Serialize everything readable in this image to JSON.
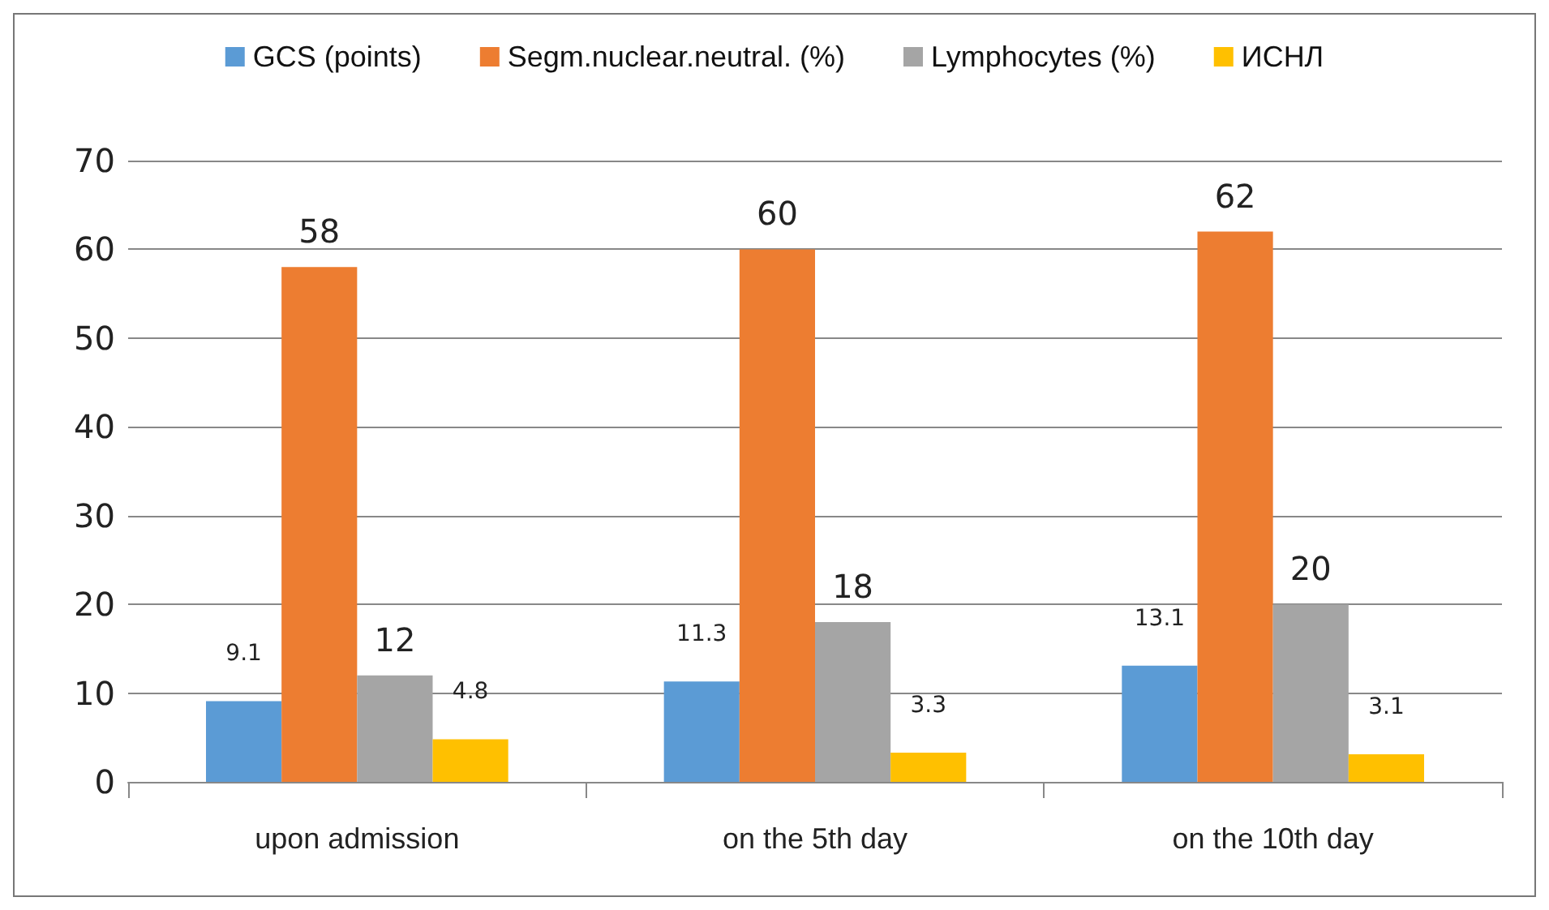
{
  "chart_data": {
    "type": "bar",
    "categories": [
      "upon admission",
      "on the 5th day",
      "on the 10th day"
    ],
    "series": [
      {
        "name": "GCS (points)",
        "color": "#5b9bd5",
        "values": [
          9.1,
          11.3,
          13.1
        ]
      },
      {
        "name": "Segm.nuclear.neutral. (%)",
        "color": "#ed7d31",
        "values": [
          58,
          60,
          62
        ]
      },
      {
        "name": "Lymphocytes (%)",
        "color": "#a5a5a5",
        "values": [
          12,
          18,
          20
        ]
      },
      {
        "name": "ИСНЛ",
        "color": "#ffc000",
        "values": [
          4.8,
          3.3,
          3.1
        ]
      }
    ],
    "ylim": [
      0,
      70
    ],
    "yticks": [
      0,
      10,
      20,
      30,
      40,
      50,
      60,
      70
    ],
    "grid": "y",
    "legend": "top",
    "data_labels": true
  }
}
